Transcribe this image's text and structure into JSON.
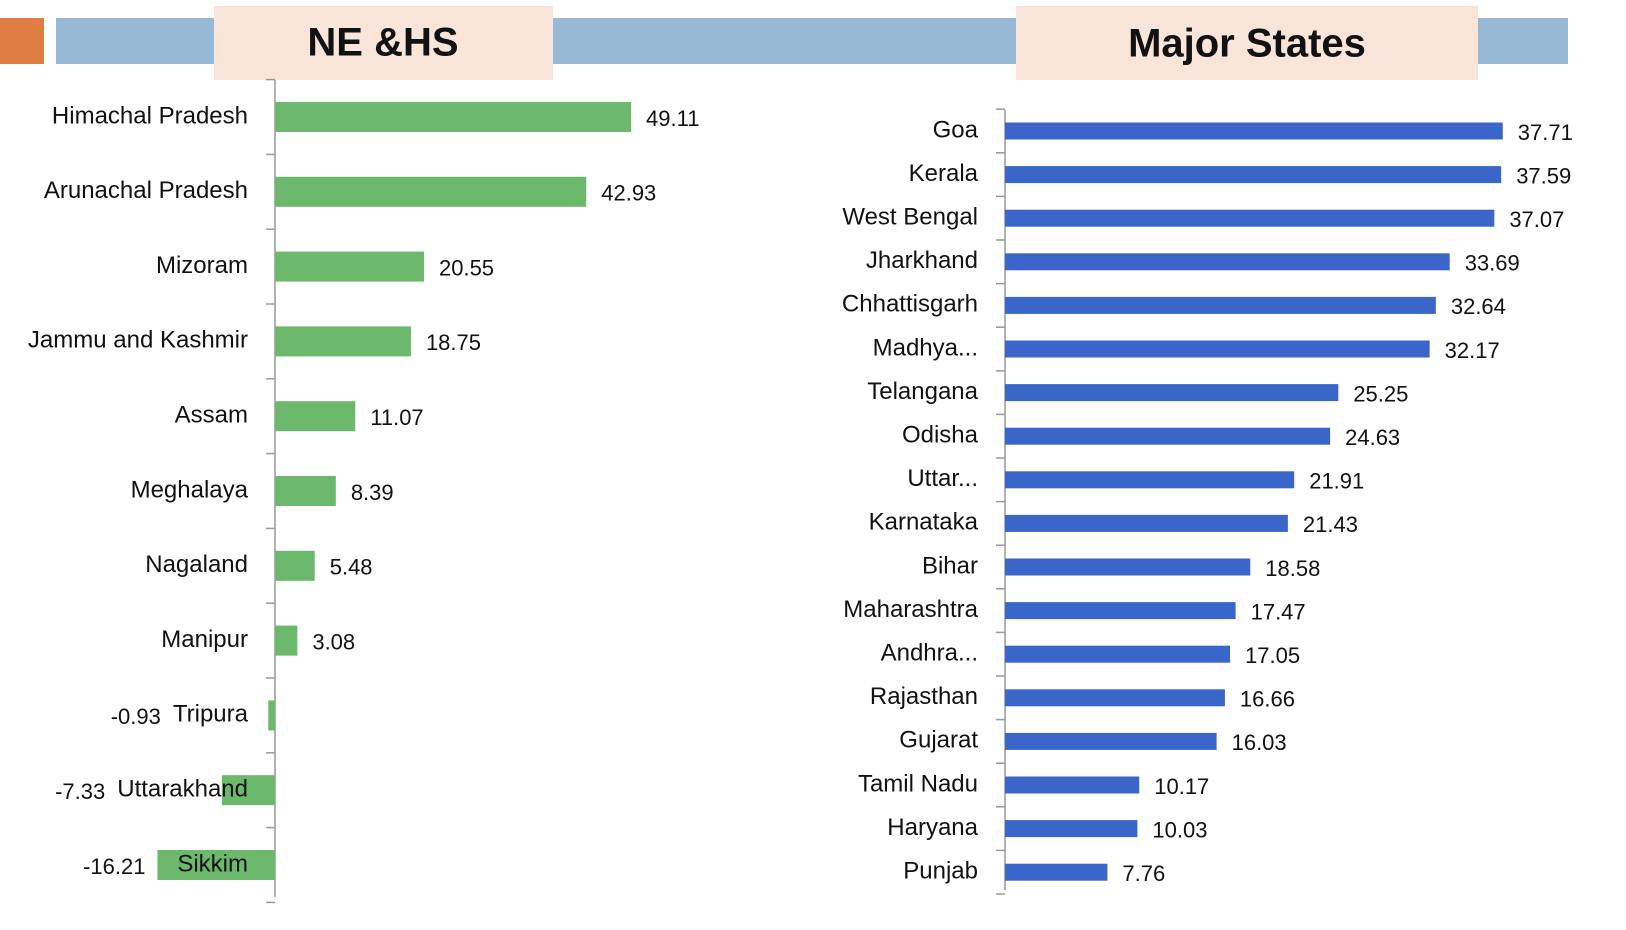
{
  "chart_data": [
    {
      "type": "barh",
      "title": "NE &HS",
      "color": "#6cb86c",
      "categories": [
        "Himachal Pradesh",
        "Arunachal Pradesh",
        "Mizoram",
        "Jammu and Kashmir",
        "Assam",
        "Meghalaya",
        "Nagaland",
        "Manipur",
        "Tripura",
        "Uttarakhand",
        "Sikkim"
      ],
      "values": [
        49.11,
        42.93,
        20.55,
        18.75,
        11.07,
        8.39,
        5.48,
        3.08,
        -0.93,
        -7.33,
        -16.21
      ],
      "xlim": [
        -20,
        60
      ]
    },
    {
      "type": "barh",
      "title": "Major States",
      "color": "#3a66c9",
      "categories": [
        "Goa",
        "Kerala",
        "West Bengal",
        "Jharkhand",
        "Chhattisgarh",
        "Madhya...",
        "Telangana",
        "Odisha",
        "Uttar...",
        "Karnataka",
        "Bihar",
        "Maharashtra",
        "Andhra...",
        "Rajasthan",
        "Gujarat",
        "Tamil Nadu",
        "Haryana",
        "Punjab"
      ],
      "values": [
        37.71,
        37.59,
        37.07,
        33.69,
        32.64,
        32.17,
        25.25,
        24.63,
        21.91,
        21.43,
        18.58,
        17.47,
        17.05,
        16.66,
        16.03,
        10.17,
        10.03,
        7.76
      ],
      "xlim": [
        0,
        40
      ]
    }
  ]
}
